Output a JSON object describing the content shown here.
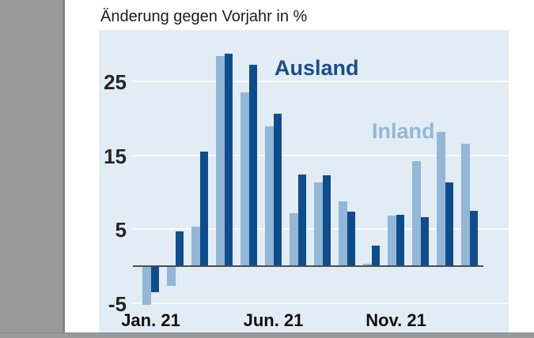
{
  "title": "Änderung gegen Vorjahr in %",
  "colors": {
    "plot_background": "#e2ecf4",
    "gridline": "#f8fbfd",
    "zero_axis": "#4d4d4d",
    "inland_bar": "#92b7d7",
    "ausland_bar": "#0e4d8d",
    "viewer_gray": "#9a9a9a"
  },
  "chart_data": {
    "type": "bar",
    "title": "Änderung gegen Vorjahr in %",
    "unit": "%",
    "n_month_pairs": 14,
    "series": [
      {
        "name": "Inland",
        "color": "#92b7d7",
        "values": [
          -5.2,
          -2.6,
          5.3,
          28.5,
          23.5,
          18.9,
          7.2,
          11.3,
          8.8,
          0.3,
          6.8,
          14.2,
          18.2,
          16.6
        ]
      },
      {
        "name": "Ausland",
        "color": "#0e4d8d",
        "values": [
          -3.4,
          4.7,
          15.5,
          28.8,
          27.3,
          20.6,
          12.4,
          12.3,
          7.4,
          2.8,
          6.9,
          6.6,
          11.3,
          7.5
        ]
      }
    ],
    "x_tick_labels": [
      {
        "index": 0,
        "label": "Jan. 21"
      },
      {
        "index": 5,
        "label": "Jun. 21"
      },
      {
        "index": 10,
        "label": "Nov. 21"
      }
    ],
    "y_ticks": [
      25,
      15,
      5,
      -5
    ],
    "ylim": [
      -9,
      32
    ],
    "grid": "horizontal white gridlines at y ticks, dark zero axis line",
    "legend": "inline bold text labels inside plot (Ausland dark blue, Inland light blue)"
  }
}
